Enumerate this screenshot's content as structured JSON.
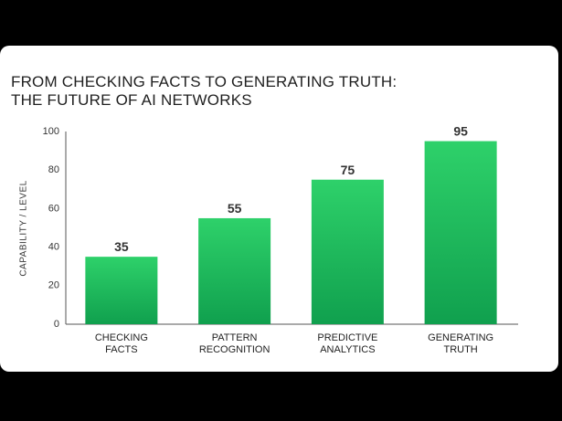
{
  "chart_data": {
    "type": "bar",
    "title_lines": [
      "FROM CHECKING FACTS TO GENERATING TRUTH:",
      "THE FUTURE OF AI NETWORKS"
    ],
    "ylabel": "CAPABILITY / LEVEL",
    "xlabel": "",
    "ylim": [
      0,
      100
    ],
    "yticks": [
      "0",
      "20",
      "40",
      "60",
      "80",
      "100"
    ],
    "categories": [
      [
        "CHECKING",
        "FACTS"
      ],
      [
        "PATTERN",
        "RECOGNITION"
      ],
      [
        "PREDICTIVE",
        "ANALYTICS"
      ],
      [
        "GENERATING",
        "TRUTH"
      ]
    ],
    "values": [
      35,
      55,
      75,
      95
    ],
    "value_labels": [
      "35",
      "55",
      "75",
      "95"
    ],
    "grid": false,
    "colors": {
      "bar_top": "#2ed16a",
      "bar_bottom": "#10a04e",
      "axis": "#555555"
    }
  }
}
